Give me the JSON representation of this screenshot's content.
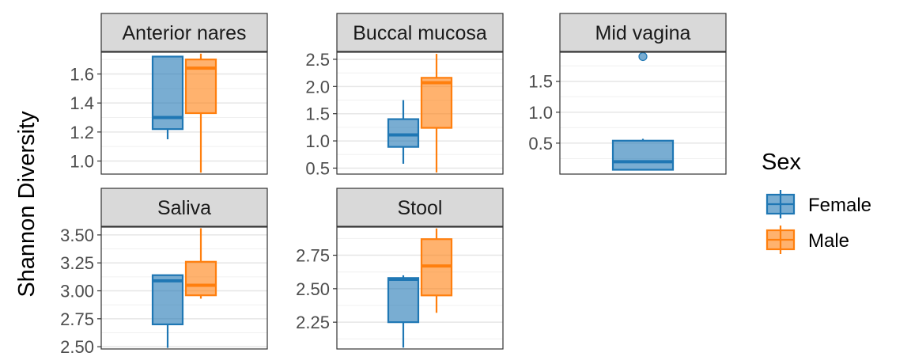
{
  "chart_data": {
    "type": "boxplot",
    "ylabel": "Shannon Diversity",
    "legend": {
      "title": "Sex",
      "placement": "right",
      "entries": [
        {
          "name": "Female",
          "color": "#1f77b4"
        },
        {
          "name": "Male",
          "color": "#ff7f0e"
        }
      ]
    },
    "grid": true,
    "panels": [
      {
        "title": "Anterior nares",
        "ylim": [
          0.91,
          1.75
        ],
        "ticks": [
          1.0,
          1.2,
          1.4,
          1.6
        ],
        "tick_labels": [
          "1.0",
          "1.2",
          "1.4",
          "1.6"
        ],
        "boxes": [
          {
            "group": "Female",
            "whisker_low": 1.15,
            "q1": 1.22,
            "median": 1.3,
            "q3": 1.72,
            "whisker_high": 1.72,
            "outliers": []
          },
          {
            "group": "Male",
            "whisker_low": 0.92,
            "q1": 1.33,
            "median": 1.64,
            "q3": 1.7,
            "whisker_high": 1.74,
            "outliers": []
          }
        ]
      },
      {
        "title": "Buccal mucosa",
        "ylim": [
          0.39,
          2.63
        ],
        "ticks": [
          0.5,
          1.0,
          1.5,
          2.0,
          2.5
        ],
        "tick_labels": [
          "0.5",
          "1.0",
          "1.5",
          "2.0",
          "2.5"
        ],
        "boxes": [
          {
            "group": "Female",
            "whisker_low": 0.58,
            "q1": 0.89,
            "median": 1.11,
            "q3": 1.4,
            "whisker_high": 1.75,
            "outliers": []
          },
          {
            "group": "Male",
            "whisker_low": 0.42,
            "q1": 1.24,
            "median": 2.07,
            "q3": 2.16,
            "whisker_high": 2.6,
            "outliers": []
          }
        ]
      },
      {
        "title": "Mid vagina",
        "ylim": [
          0.0,
          1.97
        ],
        "ticks": [
          0.5,
          1.0,
          1.5
        ],
        "tick_labels": [
          "0.5",
          "1.0",
          "1.5"
        ],
        "boxes": [
          {
            "group": "Female",
            "whisker_low": 0.07,
            "q1": 0.07,
            "median": 0.2,
            "q3": 0.54,
            "whisker_high": 0.57,
            "outliers": [
              1.9
            ]
          }
        ]
      },
      {
        "title": "Saliva",
        "ylim": [
          2.48,
          3.57
        ],
        "ticks": [
          2.5,
          2.75,
          3.0,
          3.25,
          3.5
        ],
        "tick_labels": [
          "2.50",
          "2.75",
          "3.00",
          "3.25",
          "3.50"
        ],
        "boxes": [
          {
            "group": "Female",
            "whisker_low": 2.49,
            "q1": 2.7,
            "median": 3.09,
            "q3": 3.14,
            "whisker_high": 3.14,
            "outliers": []
          },
          {
            "group": "Male",
            "whisker_low": 2.93,
            "q1": 2.96,
            "median": 3.05,
            "q3": 3.26,
            "whisker_high": 3.56,
            "outliers": []
          }
        ]
      },
      {
        "title": "Stool",
        "ylim": [
          2.05,
          2.96
        ],
        "ticks": [
          2.25,
          2.5,
          2.75
        ],
        "tick_labels": [
          "2.25",
          "2.50",
          "2.75"
        ],
        "boxes": [
          {
            "group": "Female",
            "whisker_low": 2.06,
            "q1": 2.25,
            "median": 2.57,
            "q3": 2.58,
            "whisker_high": 2.6,
            "outliers": []
          },
          {
            "group": "Male",
            "whisker_low": 2.32,
            "q1": 2.45,
            "median": 2.67,
            "q3": 2.87,
            "whisker_high": 2.95,
            "outliers": []
          }
        ]
      }
    ]
  }
}
